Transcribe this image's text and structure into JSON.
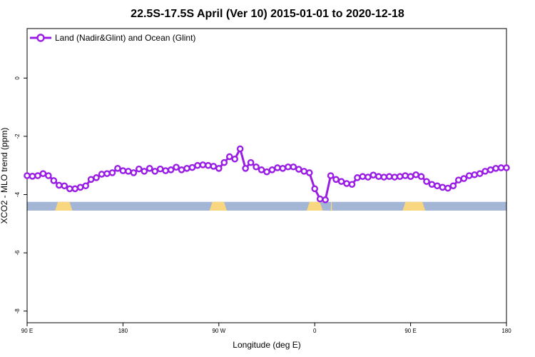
{
  "chart_data": {
    "type": "line",
    "title": "22.5S-17.5S April (Ver 10)   2015-01-01 to 2020-12-18",
    "xlabel": "Longitude (deg E)",
    "ylabel": "XCO2 - MLO trend (ppm)",
    "xlim": [
      90,
      450
    ],
    "ylim": [
      -8.4,
      1.7
    ],
    "x_ticks": [
      {
        "value": 90,
        "label": "90 E"
      },
      {
        "value": 162,
        "label": "180"
      },
      {
        "value": 234,
        "label": "90 W"
      },
      {
        "value": 306,
        "label": "0"
      },
      {
        "value": 378,
        "label": "90 E"
      },
      {
        "value": 450,
        "label": "180"
      }
    ],
    "y_ticks": [
      {
        "value": 0,
        "label": "0"
      },
      {
        "value": -2,
        "label": "-2"
      },
      {
        "value": -4,
        "label": "-4"
      },
      {
        "value": -6,
        "label": "-6"
      },
      {
        "value": -8,
        "label": "-8"
      }
    ],
    "legend": {
      "position": "top-left"
    },
    "series": [
      {
        "name": "Land (Nadir&Glint) and Ocean (Glint)",
        "color": "#9a1de6",
        "x": [
          90,
          94,
          98,
          102,
          106,
          110,
          114,
          118,
          122,
          126,
          130,
          134,
          138,
          142,
          146,
          150,
          154,
          158,
          162,
          166,
          170,
          174,
          178,
          182,
          186,
          190,
          194,
          198,
          202,
          206,
          210,
          214,
          218,
          222,
          226,
          230,
          234,
          238,
          242,
          246,
          250,
          254,
          258,
          262,
          266,
          270,
          274,
          278,
          282,
          286,
          290,
          294,
          298,
          302,
          306,
          310,
          314,
          318,
          322,
          326,
          330,
          334,
          338,
          342,
          346,
          350,
          354,
          358,
          362,
          366,
          370,
          374,
          378,
          382,
          386,
          390,
          394,
          398,
          402,
          406,
          410,
          414,
          418,
          422,
          426,
          430,
          434,
          438,
          442,
          446,
          450
        ],
        "y": [
          -3.35,
          -3.37,
          -3.35,
          -3.28,
          -3.35,
          -3.52,
          -3.68,
          -3.7,
          -3.8,
          -3.8,
          -3.75,
          -3.7,
          -3.48,
          -3.42,
          -3.3,
          -3.28,
          -3.25,
          -3.1,
          -3.18,
          -3.2,
          -3.25,
          -3.12,
          -3.2,
          -3.1,
          -3.2,
          -3.12,
          -3.18,
          -3.15,
          -3.06,
          -3.15,
          -3.1,
          -3.07,
          -3.0,
          -2.98,
          -3.0,
          -3.03,
          -3.1,
          -2.9,
          -2.7,
          -2.78,
          -2.43,
          -3.1,
          -2.9,
          -3.05,
          -3.15,
          -3.22,
          -3.15,
          -3.08,
          -3.1,
          -3.05,
          -3.05,
          -3.13,
          -3.2,
          -3.25,
          -3.8,
          -4.15,
          -4.18,
          -3.35,
          -3.48,
          -3.55,
          -3.62,
          -3.65,
          -3.42,
          -3.38,
          -3.4,
          -3.33,
          -3.38,
          -3.4,
          -3.38,
          -3.4,
          -3.38,
          -3.35,
          -3.38,
          -3.32,
          -3.38,
          -3.55,
          -3.65,
          -3.7,
          -3.75,
          -3.78,
          -3.7,
          -3.5,
          -3.45,
          -3.35,
          -3.32,
          -3.28,
          -3.2,
          -3.15,
          -3.1,
          -3.08,
          -3.08
        ]
      }
    ],
    "surface_band": {
      "y_range": [
        -4.55,
        -4.25
      ],
      "ocean_color": "#a3b6d6",
      "land_color": "#f8d780",
      "land_segments": [
        [
          111,
          124
        ],
        [
          227,
          240
        ],
        [
          300,
          312
        ],
        [
          318,
          319
        ],
        [
          372,
          389
        ]
      ]
    }
  }
}
